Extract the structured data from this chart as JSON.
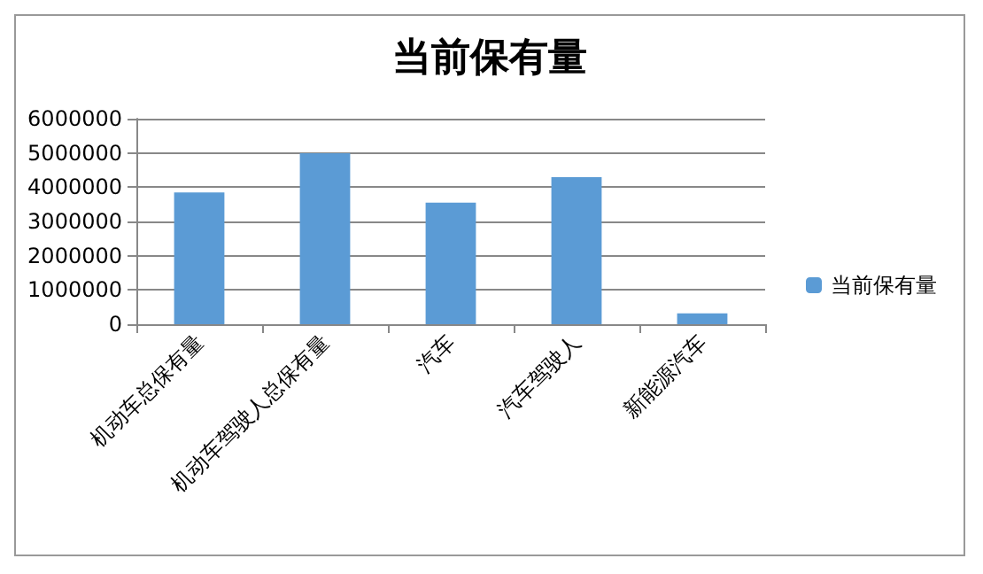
{
  "chart_data": {
    "type": "bar",
    "title": "当前保有量",
    "categories": [
      "机动车总保有量",
      "机动车驾驶人总保有量",
      "汽车",
      "汽车驾驶人",
      "新能源汽车"
    ],
    "series": [
      {
        "name": "当前保有量",
        "color": "#5b9bd5",
        "values": [
          3850000,
          4990000,
          3550000,
          4290000,
          320000
        ]
      }
    ],
    "ylim": [
      0,
      6000000
    ],
    "yticks": [
      0,
      1000000,
      2000000,
      3000000,
      4000000,
      5000000,
      6000000
    ],
    "grid": "y",
    "legend": "right"
  }
}
